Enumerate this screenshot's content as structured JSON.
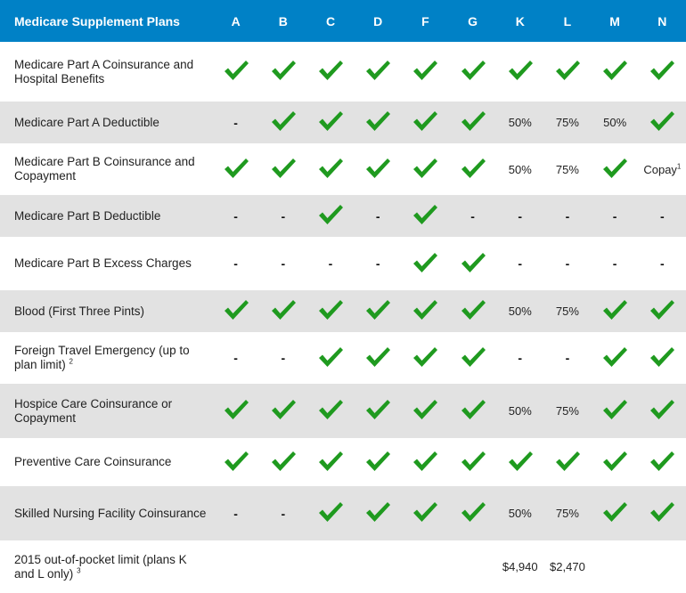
{
  "header": {
    "title": "Medicare Supplement Plans",
    "plans": [
      "A",
      "B",
      "C",
      "D",
      "F",
      "G",
      "K",
      "L",
      "M",
      "N"
    ]
  },
  "colors": {
    "header_bg": "#0081c6",
    "check": "#1f9a1f",
    "alt_row": "#e2e2e2"
  },
  "rows": [
    {
      "label": "Medicare Part A Coinsurance and Hospital Benefits",
      "sup": "",
      "shade": false,
      "cells": [
        "check",
        "check",
        "check",
        "check",
        "check",
        "check",
        "check",
        "check",
        "check",
        "check"
      ]
    },
    {
      "label": "Medicare Part A Deductible",
      "sup": "",
      "shade": true,
      "cells": [
        "-",
        "check",
        "check",
        "check",
        "check",
        "check",
        "50%",
        "75%",
        "50%",
        "check"
      ]
    },
    {
      "label": "Medicare Part B Coinsurance and Copayment",
      "sup": "",
      "shade": false,
      "cells": [
        "check",
        "check",
        "check",
        "check",
        "check",
        "check",
        "50%",
        "75%",
        "check",
        "Copay"
      ]
    },
    {
      "label": "Medicare Part B Deductible",
      "sup": "",
      "shade": true,
      "cells": [
        "-",
        "-",
        "check",
        "-",
        "check",
        "-",
        "-",
        "-",
        "-",
        "-"
      ]
    },
    {
      "label": "Medicare Part B Excess Charges",
      "sup": "",
      "shade": false,
      "cells": [
        "-",
        "-",
        "-",
        "-",
        "check",
        "check",
        "-",
        "-",
        "-",
        "-"
      ]
    },
    {
      "label": "Blood (First Three Pints)",
      "sup": "",
      "shade": true,
      "cells": [
        "check",
        "check",
        "check",
        "check",
        "check",
        "check",
        "50%",
        "75%",
        "check",
        "check"
      ]
    },
    {
      "label": "Foreign Travel Emergency (up to plan limit)",
      "sup": "2",
      "shade": false,
      "cells": [
        "-",
        "-",
        "check",
        "check",
        "check",
        "check",
        "-",
        "-",
        "check",
        "check"
      ]
    },
    {
      "label": "Hospice Care Coinsurance or Copayment",
      "sup": "",
      "shade": true,
      "cells": [
        "check",
        "check",
        "check",
        "check",
        "check",
        "check",
        "50%",
        "75%",
        "check",
        "check"
      ]
    },
    {
      "label": "Preventive Care Coinsurance",
      "sup": "",
      "shade": false,
      "cells": [
        "check",
        "check",
        "check",
        "check",
        "check",
        "check",
        "check",
        "check",
        "check",
        "check"
      ]
    },
    {
      "label": "Skilled Nursing Facility Coinsurance",
      "sup": "",
      "shade": true,
      "cells": [
        "-",
        "-",
        "check",
        "check",
        "check",
        "check",
        "50%",
        "75%",
        "check",
        "check"
      ]
    },
    {
      "label": "2015 out-of-pocket limit (plans K and L only)",
      "sup": "3",
      "shade": false,
      "cells": [
        "",
        "",
        "",
        "",
        "",
        "",
        "$4,940",
        "$2,470",
        "",
        ""
      ]
    }
  ],
  "copay_footnote": "1"
}
